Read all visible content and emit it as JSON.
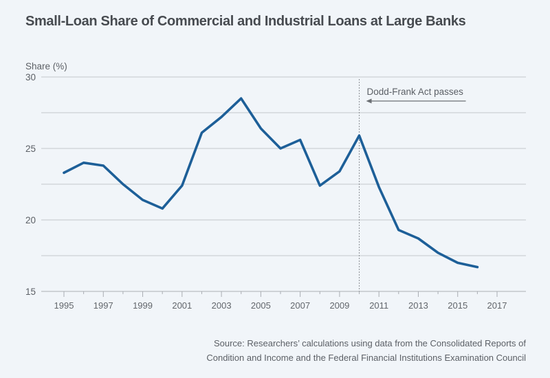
{
  "chart_data": {
    "type": "line",
    "title": "Small-Loan Share of Commercial and Industrial Loans at Large Banks",
    "xlabel": "",
    "ylabel": "Share (%)",
    "x": [
      1995,
      1996,
      1997,
      1998,
      1999,
      2000,
      2001,
      2002,
      2003,
      2004,
      2005,
      2006,
      2007,
      2008,
      2009,
      2010,
      2011,
      2012,
      2013,
      2014,
      2015,
      2016
    ],
    "series": [
      {
        "name": "Small-loan share",
        "color": "#1d5f98",
        "values": [
          23.3,
          24.0,
          23.8,
          22.5,
          21.4,
          20.8,
          22.4,
          26.1,
          27.2,
          28.5,
          26.4,
          25.0,
          25.6,
          22.4,
          23.4,
          25.9,
          22.3,
          19.3,
          18.7,
          17.7,
          17.0,
          16.7
        ]
      }
    ],
    "xlim": [
      1995,
      2017
    ],
    "ylim": [
      15,
      30
    ],
    "x_ticks": [
      1995,
      1997,
      1999,
      2001,
      2003,
      2005,
      2007,
      2009,
      2011,
      2013,
      2015,
      2017
    ],
    "x_minor_ticks": [
      1996,
      1998,
      2000,
      2002,
      2004,
      2006,
      2008,
      2010,
      2012,
      2014,
      2016
    ],
    "y_ticks": [
      15,
      20,
      25,
      30
    ],
    "y_gridlines": [
      17.5,
      20,
      22.5,
      25,
      27.5,
      30
    ],
    "grid": true,
    "legend": "none",
    "annotations": [
      {
        "type": "vertical-dashed-line",
        "x": 2010
      },
      {
        "type": "text-arrow",
        "text": "Dodd-Frank Act passes",
        "arrow_direction": "left",
        "x": 2010,
        "y": 29.0
      }
    ]
  },
  "source": {
    "line1": "Source: Researchers’ calculations using data from the Consolidated Reports of",
    "line2": "Condition and Income and the Federal Financial Institutions Examination Council"
  },
  "colors": {
    "background": "#f1f5f9",
    "line": "#1d5f98",
    "grid": "#cdd1d5",
    "text": "#5c6066",
    "title": "#474b50"
  }
}
